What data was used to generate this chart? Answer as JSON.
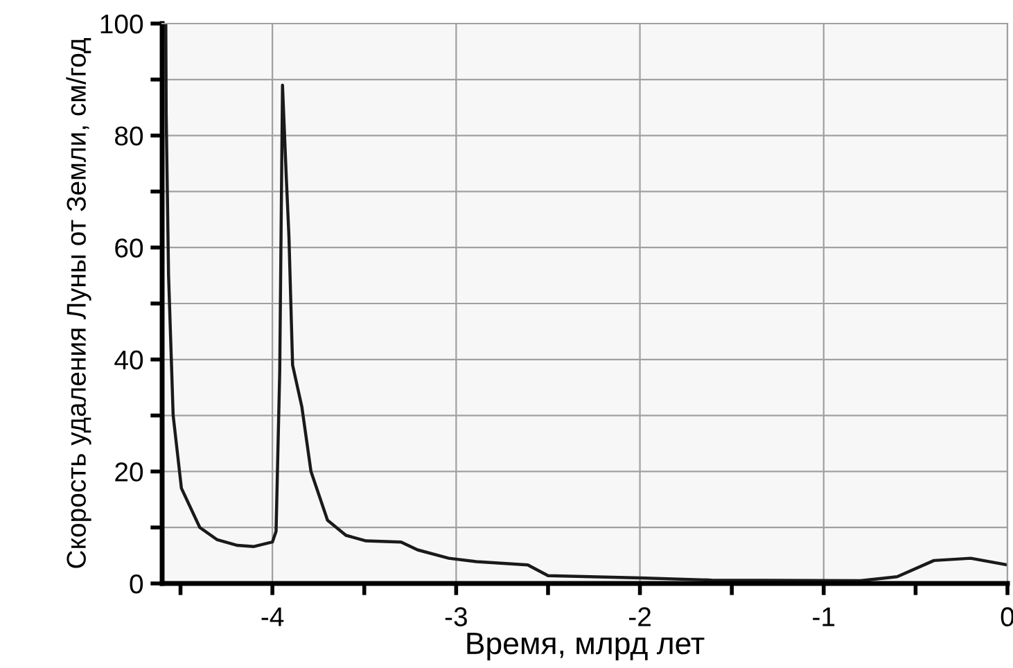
{
  "chart_data": {
    "type": "line",
    "xlabel": "Время, млрд лет",
    "ylabel": "Скорость удаления Луны от Земли, см/год",
    "xlim": [
      -4.6,
      0
    ],
    "ylim": [
      0,
      100
    ],
    "xticks": [
      {
        "value": -4.5,
        "label": null
      },
      -4,
      {
        "value": -3.5,
        "label": null
      },
      -3,
      {
        "value": -2.5,
        "label": null
      },
      -2,
      {
        "value": -1.5,
        "label": null
      },
      -1,
      {
        "value": -0.5,
        "label": null
      },
      0
    ],
    "yticks": [
      0,
      {
        "value": 10,
        "label": null
      },
      20,
      {
        "value": 30,
        "label": null
      },
      40,
      {
        "value": 50,
        "label": null
      },
      60,
      {
        "value": 70,
        "label": null
      },
      80,
      {
        "value": 90,
        "label": null
      },
      100
    ],
    "grid": true,
    "marker": "none",
    "line_style": "solid",
    "series": [
      {
        "color": "#1a1a1a",
        "x": [
          -4.58,
          -4.578,
          -4.565,
          -4.54,
          -4.495,
          -4.395,
          -4.3,
          -4.19,
          -4.1,
          -4.0,
          -3.98,
          -3.96,
          -3.945,
          -3.925,
          -3.91,
          -3.89,
          -3.84,
          -3.79,
          -3.7,
          -3.6,
          -3.49,
          -3.3,
          -3.21,
          -3.04,
          -2.89,
          -2.61,
          -2.5,
          -2.0,
          -1.61,
          -0.8,
          -0.6,
          -0.4,
          -0.2,
          0
        ],
        "values": [
          100,
          84,
          55,
          30,
          17,
          10,
          7.8,
          6.8,
          6.6,
          7.4,
          9.3,
          38,
          89,
          73,
          62,
          39,
          31.6,
          20,
          11.3,
          8.6,
          7.6,
          7.4,
          6,
          4.5,
          3.9,
          3.3,
          1.4,
          1,
          0.6,
          0.5,
          1.2,
          4.1,
          4.5,
          3.3
        ]
      }
    ]
  }
}
